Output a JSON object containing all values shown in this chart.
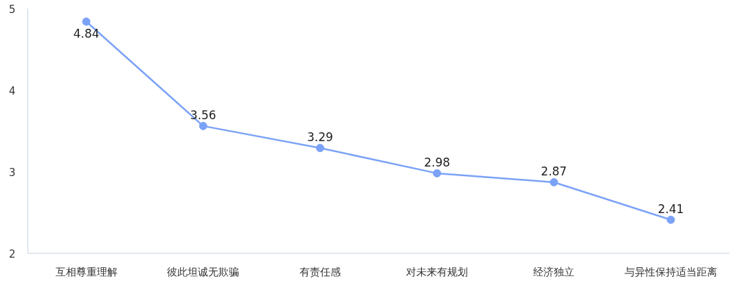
{
  "chart_data": {
    "type": "line",
    "categories": [
      "互相尊重理解",
      "彼此坦诚无欺骗",
      "有责任感",
      "对未来有规划",
      "经济独立",
      "与异性保持适当距离"
    ],
    "series": [
      {
        "color": "#7ba2f7",
        "values": [
          4.84,
          3.56,
          3.29,
          2.98,
          2.87,
          2.41
        ]
      }
    ],
    "ylim": [
      2,
      5
    ],
    "yticks": [
      2,
      3,
      4,
      5
    ],
    "data_labels": true,
    "marker": "circle",
    "grid": false
  }
}
